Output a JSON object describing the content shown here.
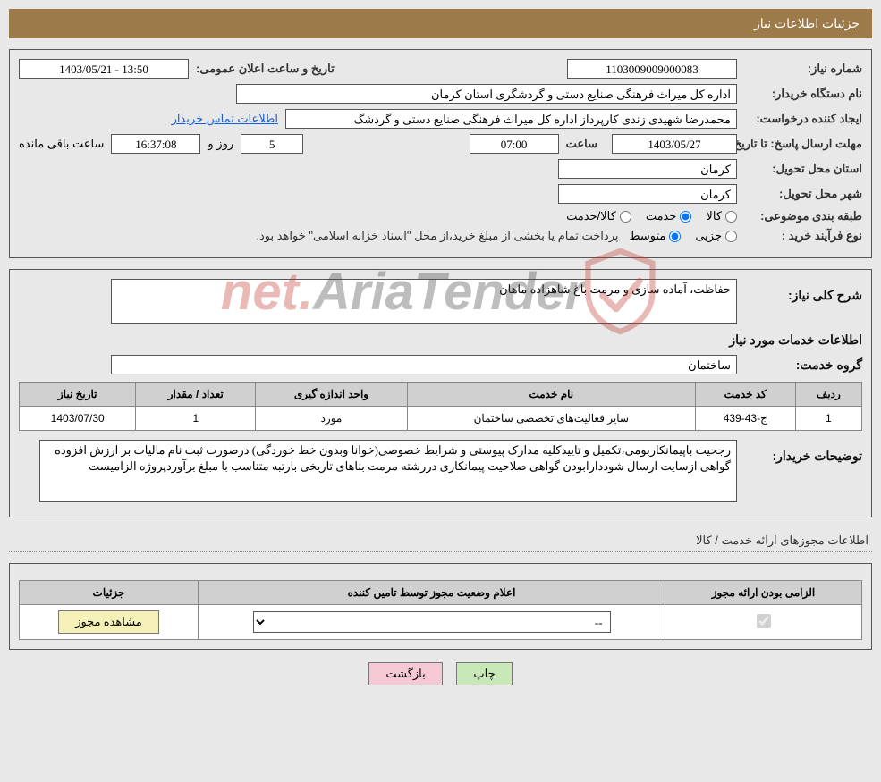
{
  "page_title": "جزئیات اطلاعات نیاز",
  "colors": {
    "header_bg": "#9d7a4a",
    "header_fg": "#ffffff",
    "page_bg": "#e8e8e8",
    "border": "#555555",
    "table_header_bg": "#d0d0d0",
    "link": "#1a5fd0",
    "btn_green": "#c9e8b8",
    "btn_pink": "#f5c9d4",
    "btn_yellow": "#f5f0b8",
    "wm_red": "#c13b2e"
  },
  "section1": {
    "need_no_label": "شماره نیاز:",
    "need_no": "1103009009000083",
    "pub_date_label": "تاریخ و ساعت اعلان عمومی:",
    "pub_date": "13:50 - 1403/05/21",
    "buyer_org_label": "نام دستگاه خریدار:",
    "buyer_org": "اداره کل میراث فرهنگی  صنایع دستی و گردشگری استان کرمان",
    "requester_label": "ایجاد کننده درخواست:",
    "requester": "محمدرضا شهیدی زندی کارپرداز اداره کل میراث فرهنگی  صنایع دستی و گردشگ",
    "contact_link": "اطلاعات تماس خریدار",
    "deadline_label": "مهلت ارسال پاسخ: تا تاریخ:",
    "deadline_date": "1403/05/27",
    "time_label": "ساعت",
    "deadline_time": "07:00",
    "days": "5",
    "days_suffix": "روز و",
    "hours": "16:37:08",
    "remaining_suffix": "ساعت باقی مانده",
    "province_label": "استان محل تحویل:",
    "province": "کرمان",
    "city_label": "شهر محل تحویل:",
    "city": "کرمان",
    "topic_class_label": "طبقه بندی موضوعی:",
    "radio_goods": "کالا",
    "radio_service": "خدمت",
    "radio_goods_service": "کالا/خدمت",
    "purchase_type_label": "نوع فرآیند خرید :",
    "radio_minor": "جزیی",
    "radio_medium": "متوسط",
    "purchase_note": "پرداخت تمام یا بخشی از مبلغ خرید،از محل \"اسناد خزانه اسلامی\" خواهد بود."
  },
  "section2": {
    "desc_label": "شرح کلی نیاز:",
    "desc": "حفاظت، آماده سازی و مرمت باغ شاهزاده ماهان",
    "services_heading": "اطلاعات خدمات مورد نیاز",
    "service_group_label": "گروه خدمت:",
    "service_group": "ساختمان",
    "table": {
      "headers": [
        "ردیف",
        "کد خدمت",
        "نام خدمت",
        "واحد اندازه گیری",
        "تعداد / مقدار",
        "تاریخ نیاز"
      ],
      "rows": [
        [
          "1",
          "ج-43-439",
          "سایر فعالیت‌های تخصصی ساختمان",
          "مورد",
          "1",
          "1403/07/30"
        ]
      ]
    },
    "buyer_notes_label": "توضیحات خریدار:",
    "buyer_notes": "رجحیت باپیمانکاربومی،تکمیل و تاییدکلیه مدارک پیوستی و شرایط خصوصی(خوانا وبدون خط خوردگی) درصورت ثبت نام مالیات بر ارزش افزوده گواهی ازسایت ارسال شوددارابودن گواهی صلاحیت پیمانکاری دررشته مرمت بناهای تاریخی بارتبه متناسب با مبلغ برآوردپروژه الزامیست"
  },
  "section3_heading": "اطلاعات مجوزهای ارائه خدمت / کالا",
  "section3": {
    "table": {
      "headers": [
        "الزامی بودن ارائه مجوز",
        "اعلام وضعیت مجوز توسط تامین کننده",
        "جزئیات"
      ],
      "mandatory_checked": true,
      "select_value": "--",
      "details_btn": "مشاهده مجوز"
    }
  },
  "buttons": {
    "print": "چاپ",
    "back": "بازگشت"
  },
  "watermark": {
    "part1": "AriaTender",
    "part2": ".net"
  }
}
